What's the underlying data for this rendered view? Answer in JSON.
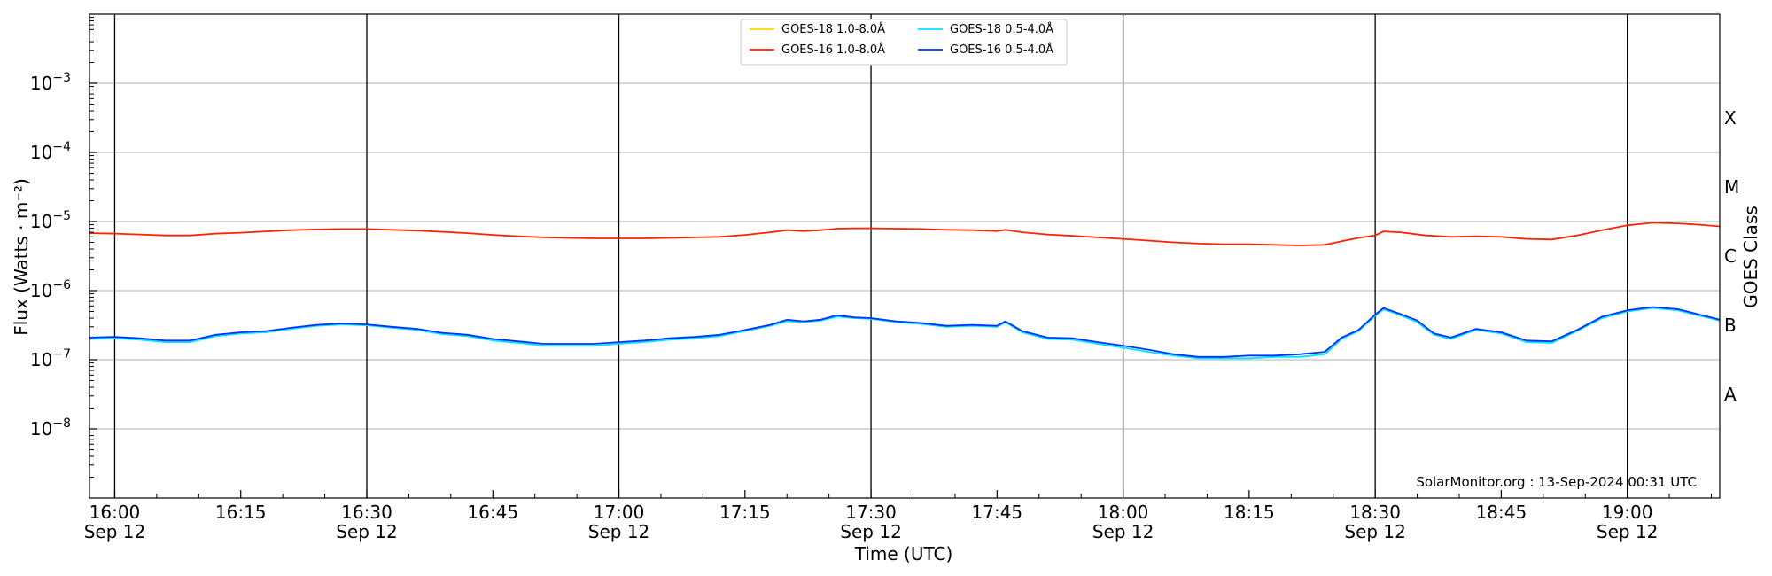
{
  "chart_data": {
    "type": "line",
    "title": "",
    "xlabel": "Time (UTC)",
    "ylabel": "Flux (Watts · m⁻²)",
    "y2label": "GOES Class",
    "yscale": "log",
    "ylim": [
      1e-09,
      0.01
    ],
    "xlim": [
      "15:57",
      "19:11"
    ],
    "x_ticks": [
      {
        "t": "16:00",
        "label": "16:00",
        "sub": "Sep 12",
        "major": true
      },
      {
        "t": "16:15",
        "label": "16:15",
        "sub": "",
        "major": false
      },
      {
        "t": "16:30",
        "label": "16:30",
        "sub": "Sep 12",
        "major": true
      },
      {
        "t": "16:45",
        "label": "16:45",
        "sub": "",
        "major": false
      },
      {
        "t": "17:00",
        "label": "17:00",
        "sub": "Sep 12",
        "major": true
      },
      {
        "t": "17:15",
        "label": "17:15",
        "sub": "",
        "major": false
      },
      {
        "t": "17:30",
        "label": "17:30",
        "sub": "Sep 12",
        "major": true
      },
      {
        "t": "17:45",
        "label": "17:45",
        "sub": "",
        "major": false
      },
      {
        "t": "18:00",
        "label": "18:00",
        "sub": "Sep 12",
        "major": true
      },
      {
        "t": "18:15",
        "label": "18:15",
        "sub": "",
        "major": false
      },
      {
        "t": "18:30",
        "label": "18:30",
        "sub": "Sep 12",
        "major": true
      },
      {
        "t": "18:45",
        "label": "18:45",
        "sub": "",
        "major": false
      },
      {
        "t": "19:00",
        "label": "19:00",
        "sub": "Sep 12",
        "major": true
      }
    ],
    "y_ticks": [
      {
        "value": 1e-08,
        "base": "10",
        "exp": "−8"
      },
      {
        "value": 1e-07,
        "base": "10",
        "exp": "−7"
      },
      {
        "value": 1e-06,
        "base": "10",
        "exp": "−6"
      },
      {
        "value": 1e-05,
        "base": "10",
        "exp": "−5"
      },
      {
        "value": 0.0001,
        "base": "10",
        "exp": "−4"
      },
      {
        "value": 0.001,
        "base": "10",
        "exp": "−3"
      }
    ],
    "classes": [
      {
        "label": "A",
        "value": 3.16e-08
      },
      {
        "label": "B",
        "value": 3.16e-07
      },
      {
        "label": "C",
        "value": 3.16e-06
      },
      {
        "label": "M",
        "value": 3.16e-05
      },
      {
        "label": "X",
        "value": 0.000316
      }
    ],
    "grid": true,
    "legend_position": "top-center",
    "credit": "SolarMonitor.org : 13-Sep-2024 00:31 UTC",
    "series": [
      {
        "name": "GOES-18 1.0-8.0Å",
        "color": "#ffd700",
        "points": []
      },
      {
        "name": "GOES-16 1.0-8.0Å",
        "color": "#ff2200",
        "points": [
          [
            "15:57",
            6.8e-06
          ],
          [
            "16:00",
            6.7e-06
          ],
          [
            "16:03",
            6.5e-06
          ],
          [
            "16:06",
            6.3e-06
          ],
          [
            "16:09",
            6.3e-06
          ],
          [
            "16:12",
            6.7e-06
          ],
          [
            "16:15",
            6.9e-06
          ],
          [
            "16:18",
            7.2e-06
          ],
          [
            "16:21",
            7.5e-06
          ],
          [
            "16:24",
            7.7e-06
          ],
          [
            "16:27",
            7.8e-06
          ],
          [
            "16:30",
            7.8e-06
          ],
          [
            "16:33",
            7.6e-06
          ],
          [
            "16:36",
            7.4e-06
          ],
          [
            "16:39",
            7.1e-06
          ],
          [
            "16:42",
            6.8e-06
          ],
          [
            "16:45",
            6.4e-06
          ],
          [
            "16:48",
            6.1e-06
          ],
          [
            "16:51",
            5.9e-06
          ],
          [
            "16:54",
            5.8e-06
          ],
          [
            "16:57",
            5.7e-06
          ],
          [
            "17:00",
            5.7e-06
          ],
          [
            "17:03",
            5.7e-06
          ],
          [
            "17:06",
            5.8e-06
          ],
          [
            "17:09",
            5.9e-06
          ],
          [
            "17:12",
            6e-06
          ],
          [
            "17:15",
            6.4e-06
          ],
          [
            "17:18",
            7e-06
          ],
          [
            "17:20",
            7.5e-06
          ],
          [
            "17:22",
            7.3e-06
          ],
          [
            "17:24",
            7.5e-06
          ],
          [
            "17:26",
            7.9e-06
          ],
          [
            "17:28",
            8e-06
          ],
          [
            "17:30",
            8e-06
          ],
          [
            "17:33",
            7.9e-06
          ],
          [
            "17:36",
            7.8e-06
          ],
          [
            "17:39",
            7.6e-06
          ],
          [
            "17:42",
            7.5e-06
          ],
          [
            "17:45",
            7.3e-06
          ],
          [
            "17:46",
            7.6e-06
          ],
          [
            "17:48",
            7e-06
          ],
          [
            "17:51",
            6.5e-06
          ],
          [
            "17:54",
            6.2e-06
          ],
          [
            "17:57",
            5.9e-06
          ],
          [
            "18:00",
            5.6e-06
          ],
          [
            "18:03",
            5.3e-06
          ],
          [
            "18:06",
            5e-06
          ],
          [
            "18:09",
            4.8e-06
          ],
          [
            "18:12",
            4.7e-06
          ],
          [
            "18:15",
            4.7e-06
          ],
          [
            "18:18",
            4.6e-06
          ],
          [
            "18:21",
            4.5e-06
          ],
          [
            "18:24",
            4.6e-06
          ],
          [
            "18:26",
            5.2e-06
          ],
          [
            "18:28",
            5.8e-06
          ],
          [
            "18:30",
            6.3e-06
          ],
          [
            "18:31",
            7.2e-06
          ],
          [
            "18:33",
            7e-06
          ],
          [
            "18:36",
            6.3e-06
          ],
          [
            "18:39",
            6e-06
          ],
          [
            "18:42",
            6.1e-06
          ],
          [
            "18:45",
            6e-06
          ],
          [
            "18:48",
            5.6e-06
          ],
          [
            "18:51",
            5.5e-06
          ],
          [
            "18:54",
            6.3e-06
          ],
          [
            "18:57",
            7.5e-06
          ],
          [
            "19:00",
            8.8e-06
          ],
          [
            "19:03",
            9.6e-06
          ],
          [
            "19:06",
            9.4e-06
          ],
          [
            "19:09",
            8.9e-06
          ],
          [
            "19:11",
            8.5e-06
          ]
        ]
      },
      {
        "name": "GOES-18 0.5-4.0Å",
        "color": "#00e5ff",
        "points": [
          [
            "15:57",
            2e-07
          ],
          [
            "16:00",
            2.05e-07
          ],
          [
            "16:03",
            1.95e-07
          ],
          [
            "16:06",
            1.8e-07
          ],
          [
            "16:09",
            1.8e-07
          ],
          [
            "16:12",
            2.2e-07
          ],
          [
            "16:15",
            2.4e-07
          ],
          [
            "16:18",
            2.5e-07
          ],
          [
            "16:21",
            2.8e-07
          ],
          [
            "16:24",
            3.1e-07
          ],
          [
            "16:27",
            3.25e-07
          ],
          [
            "16:30",
            3.15e-07
          ],
          [
            "16:33",
            2.9e-07
          ],
          [
            "16:36",
            2.7e-07
          ],
          [
            "16:39",
            2.35e-07
          ],
          [
            "16:42",
            2.2e-07
          ],
          [
            "16:45",
            1.9e-07
          ],
          [
            "16:48",
            1.75e-07
          ],
          [
            "16:51",
            1.6e-07
          ],
          [
            "16:54",
            1.6e-07
          ],
          [
            "16:57",
            1.6e-07
          ],
          [
            "17:00",
            1.7e-07
          ],
          [
            "17:03",
            1.8e-07
          ],
          [
            "17:06",
            1.95e-07
          ],
          [
            "17:09",
            2.05e-07
          ],
          [
            "17:12",
            2.2e-07
          ],
          [
            "17:15",
            2.6e-07
          ],
          [
            "17:18",
            3.1e-07
          ],
          [
            "17:20",
            3.6e-07
          ],
          [
            "17:22",
            3.5e-07
          ],
          [
            "17:24",
            3.7e-07
          ],
          [
            "17:26",
            4.2e-07
          ],
          [
            "17:28",
            4e-07
          ],
          [
            "17:30",
            3.9e-07
          ],
          [
            "17:33",
            3.5e-07
          ],
          [
            "17:36",
            3.3e-07
          ],
          [
            "17:39",
            3e-07
          ],
          [
            "17:42",
            3.1e-07
          ],
          [
            "17:45",
            3e-07
          ],
          [
            "17:46",
            3.5e-07
          ],
          [
            "17:48",
            2.5e-07
          ],
          [
            "17:51",
            2e-07
          ],
          [
            "17:54",
            1.95e-07
          ],
          [
            "17:57",
            1.7e-07
          ],
          [
            "18:00",
            1.5e-07
          ],
          [
            "18:03",
            1.3e-07
          ],
          [
            "18:06",
            1.15e-07
          ],
          [
            "18:09",
            1.05e-07
          ],
          [
            "18:12",
            1.05e-07
          ],
          [
            "18:15",
            1.05e-07
          ],
          [
            "18:18",
            1.1e-07
          ],
          [
            "18:21",
            1.1e-07
          ],
          [
            "18:24",
            1.2e-07
          ],
          [
            "18:26",
            2e-07
          ],
          [
            "18:28",
            2.6e-07
          ],
          [
            "18:30",
            4.3e-07
          ],
          [
            "18:31",
            5.4e-07
          ],
          [
            "18:33",
            4.4e-07
          ],
          [
            "18:35",
            3.5e-07
          ],
          [
            "18:37",
            2.3e-07
          ],
          [
            "18:39",
            2e-07
          ],
          [
            "18:42",
            2.7e-07
          ],
          [
            "18:45",
            2.4e-07
          ],
          [
            "18:48",
            1.8e-07
          ],
          [
            "18:51",
            1.75e-07
          ],
          [
            "18:54",
            2.6e-07
          ],
          [
            "18:57",
            4e-07
          ],
          [
            "19:00",
            5e-07
          ],
          [
            "19:03",
            5.6e-07
          ],
          [
            "19:06",
            5.2e-07
          ],
          [
            "19:08",
            4.5e-07
          ],
          [
            "19:11",
            3.7e-07
          ]
        ]
      },
      {
        "name": "GOES-16 0.5-4.0Å",
        "color": "#0033ff",
        "points": [
          [
            "15:57",
            2.1e-07
          ],
          [
            "16:00",
            2.15e-07
          ],
          [
            "16:03",
            2.05e-07
          ],
          [
            "16:06",
            1.9e-07
          ],
          [
            "16:09",
            1.9e-07
          ],
          [
            "16:12",
            2.3e-07
          ],
          [
            "16:15",
            2.5e-07
          ],
          [
            "16:18",
            2.6e-07
          ],
          [
            "16:21",
            2.9e-07
          ],
          [
            "16:24",
            3.2e-07
          ],
          [
            "16:27",
            3.35e-07
          ],
          [
            "16:30",
            3.25e-07
          ],
          [
            "16:33",
            3e-07
          ],
          [
            "16:36",
            2.8e-07
          ],
          [
            "16:39",
            2.45e-07
          ],
          [
            "16:42",
            2.3e-07
          ],
          [
            "16:45",
            2e-07
          ],
          [
            "16:48",
            1.85e-07
          ],
          [
            "16:51",
            1.7e-07
          ],
          [
            "16:54",
            1.7e-07
          ],
          [
            "16:57",
            1.7e-07
          ],
          [
            "17:00",
            1.8e-07
          ],
          [
            "17:03",
            1.9e-07
          ],
          [
            "17:06",
            2.05e-07
          ],
          [
            "17:09",
            2.15e-07
          ],
          [
            "17:12",
            2.3e-07
          ],
          [
            "17:15",
            2.7e-07
          ],
          [
            "17:18",
            3.2e-07
          ],
          [
            "17:20",
            3.8e-07
          ],
          [
            "17:22",
            3.6e-07
          ],
          [
            "17:24",
            3.8e-07
          ],
          [
            "17:26",
            4.4e-07
          ],
          [
            "17:28",
            4.1e-07
          ],
          [
            "17:30",
            4e-07
          ],
          [
            "17:33",
            3.6e-07
          ],
          [
            "17:36",
            3.4e-07
          ],
          [
            "17:39",
            3.1e-07
          ],
          [
            "17:42",
            3.2e-07
          ],
          [
            "17:45",
            3.1e-07
          ],
          [
            "17:46",
            3.6e-07
          ],
          [
            "17:48",
            2.6e-07
          ],
          [
            "17:51",
            2.1e-07
          ],
          [
            "17:54",
            2.05e-07
          ],
          [
            "17:57",
            1.8e-07
          ],
          [
            "18:00",
            1.6e-07
          ],
          [
            "18:03",
            1.4e-07
          ],
          [
            "18:06",
            1.2e-07
          ],
          [
            "18:09",
            1.1e-07
          ],
          [
            "18:12",
            1.1e-07
          ],
          [
            "18:15",
            1.15e-07
          ],
          [
            "18:18",
            1.15e-07
          ],
          [
            "18:21",
            1.2e-07
          ],
          [
            "18:24",
            1.3e-07
          ],
          [
            "18:26",
            2.1e-07
          ],
          [
            "18:28",
            2.7e-07
          ],
          [
            "18:30",
            4.5e-07
          ],
          [
            "18:31",
            5.6e-07
          ],
          [
            "18:33",
            4.6e-07
          ],
          [
            "18:35",
            3.7e-07
          ],
          [
            "18:37",
            2.4e-07
          ],
          [
            "18:39",
            2.1e-07
          ],
          [
            "18:42",
            2.8e-07
          ],
          [
            "18:45",
            2.5e-07
          ],
          [
            "18:48",
            1.9e-07
          ],
          [
            "18:51",
            1.85e-07
          ],
          [
            "18:54",
            2.7e-07
          ],
          [
            "18:57",
            4.2e-07
          ],
          [
            "19:00",
            5.2e-07
          ],
          [
            "19:03",
            5.8e-07
          ],
          [
            "19:06",
            5.4e-07
          ],
          [
            "19:08",
            4.7e-07
          ],
          [
            "19:11",
            3.8e-07
          ]
        ]
      }
    ]
  }
}
